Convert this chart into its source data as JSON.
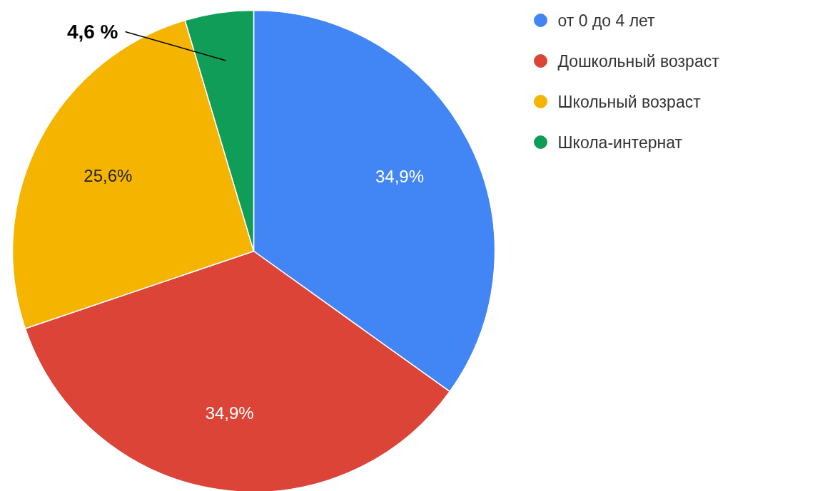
{
  "chart_data": {
    "type": "pie",
    "categories": [
      "от 0 до 4 лет",
      "Дошкольный возраст",
      "Школьный возраст",
      "Школа-интернат"
    ],
    "values": [
      34.9,
      34.9,
      25.6,
      4.6
    ],
    "colors": [
      "#4285f4",
      "#db4437",
      "#f4b400",
      "#0f9d58"
    ],
    "value_labels": [
      "34,9%",
      "34,9%",
      "25,6%",
      "4,6 %"
    ],
    "legend": "top right"
  }
}
